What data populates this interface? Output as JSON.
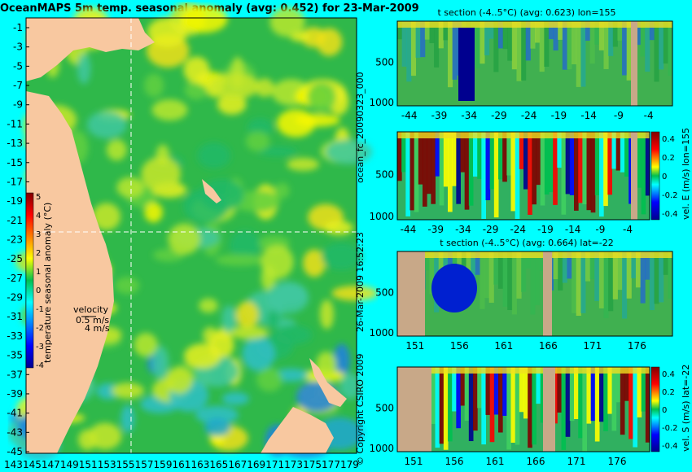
{
  "map": {
    "title": "OceanMAPS 5m temp. seasonal anomaly (avg: 0.452) for 23-Mar-2009",
    "y_ticks": [
      "-1",
      "-3",
      "-5",
      "-7",
      "-9",
      "-11",
      "-13",
      "-15",
      "-17",
      "-19",
      "-21",
      "-23",
      "-25",
      "-27",
      "-29",
      "-31",
      "-33",
      "-35",
      "-37",
      "-39",
      "-41",
      "-43",
      "-45"
    ],
    "x_ticks": [
      "143",
      "145",
      "147",
      "149",
      "151",
      "153",
      "155",
      "157",
      "159",
      "161",
      "163",
      "165",
      "167",
      "169",
      "171",
      "173",
      "175",
      "177",
      "179"
    ],
    "colorbar_label": "temperature seasonal anomaly (°C)",
    "colorbar_ticks": [
      "5",
      "4",
      "3",
      "2",
      "1",
      "0",
      "-1",
      "-2",
      "-3",
      "-4"
    ],
    "velocity_label": "velocity",
    "velocity_value": "0.5 m/s",
    "velocity_value2": "4 m/s",
    "section_lon": 155,
    "section_lat": -22
  },
  "side_text": {
    "file_label": "ocean_fc_20090323_000",
    "time_label": "26-Mar-2009 16:52:23",
    "copyright": "© Copyright CSIRO 2009"
  },
  "panels": [
    {
      "title": "t section (-4..5°C) (avg: 0.623) lon=155",
      "x_ticks": [
        "-44",
        "-39",
        "-34",
        "-29",
        "-24",
        "-19",
        "-14",
        "-9",
        "-4"
      ],
      "y_ticks": [
        "500",
        "1000"
      ],
      "colorbar": false
    },
    {
      "title": "",
      "x_ticks": [
        "-44",
        "-39",
        "-34",
        "-29",
        "-24",
        "-19",
        "-14",
        "-9",
        "-4"
      ],
      "y_ticks": [
        "500",
        "1000"
      ],
      "colorbar": true,
      "colorbar_ticks": [
        "0.4",
        "0.2",
        "0",
        "-0.2",
        "-0.4"
      ],
      "colorbar_label": "vel. E (m/s) lon=155"
    },
    {
      "title": "t section (-4..5°C) (avg: 0.664) lat=-22",
      "x_ticks": [
        "151",
        "156",
        "161",
        "166",
        "171",
        "176"
      ],
      "y_ticks": [
        "500",
        "1000"
      ],
      "colorbar": false
    },
    {
      "title": "",
      "x_ticks": [
        "151",
        "156",
        "161",
        "166",
        "171",
        "176"
      ],
      "y_ticks": [
        "500",
        "1000"
      ],
      "colorbar": true,
      "colorbar_ticks": [
        "0.4",
        "0.2",
        "0",
        "-0.2",
        "-0.4"
      ],
      "colorbar_label": "vel. S (m/s) lat=-22"
    }
  ],
  "chart_data": [
    {
      "type": "heatmap",
      "title": "OceanMAPS 5m temp. seasonal anomaly (avg: 0.452) for 23-Mar-2009",
      "x_range": [
        143,
        180
      ],
      "y_range": [
        -45,
        0
      ],
      "value_range": [
        -4,
        5
      ],
      "value_label": "temperature seasonal anomaly (°C)"
    },
    {
      "type": "heatmap",
      "title": "t section (-4..5°C) (avg: 0.623) lon=155",
      "x_range": [
        -46,
        0
      ],
      "y_range": [
        1050,
        0
      ],
      "value_range": [
        -4,
        5
      ]
    },
    {
      "type": "heatmap",
      "title": "",
      "x_range": [
        -46,
        0
      ],
      "y_range": [
        1050,
        0
      ],
      "value_range": [
        -0.4,
        0.4
      ],
      "value_label": "vel. E (m/s) lon=155"
    },
    {
      "type": "heatmap",
      "title": "t section (-4..5°C) (avg: 0.664) lat=-22",
      "x_range": [
        149,
        180
      ],
      "y_range": [
        1050,
        0
      ],
      "value_range": [
        -4,
        5
      ]
    },
    {
      "type": "heatmap",
      "title": "",
      "x_range": [
        149,
        180
      ],
      "y_range": [
        1050,
        0
      ],
      "value_range": [
        -0.4,
        0.4
      ],
      "value_label": "vel. S (m/s) lat=-22"
    }
  ]
}
